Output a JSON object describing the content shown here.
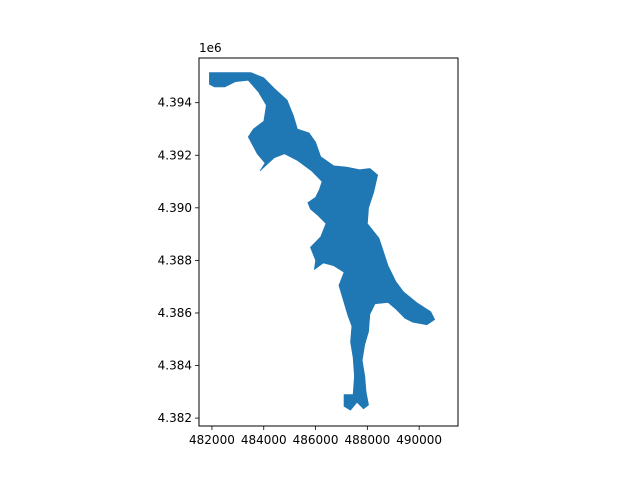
{
  "chart_data": {
    "type": "map",
    "title": "",
    "xlabel": "",
    "ylabel": "",
    "y_offset_label": "1e6",
    "xlim": [
      481500,
      491500
    ],
    "ylim": [
      4381700,
      4395700
    ],
    "x_ticks": [
      482000,
      484000,
      486000,
      488000,
      490000
    ],
    "x_tick_labels": [
      "482000",
      "484000",
      "486000",
      "488000",
      "490000"
    ],
    "y_ticks": [
      4382000,
      4384000,
      4386000,
      4388000,
      4390000,
      4392000,
      4394000
    ],
    "y_tick_labels": [
      "4.382",
      "4.384",
      "4.386",
      "4.388",
      "4.390",
      "4.392",
      "4.394"
    ],
    "grid": false,
    "fill_color": "#1f77b4",
    "polygon": [
      [
        481900,
        4395150
      ],
      [
        483500,
        4395150
      ],
      [
        484000,
        4394950
      ],
      [
        484400,
        4394550
      ],
      [
        484900,
        4394100
      ],
      [
        485150,
        4393500
      ],
      [
        485300,
        4393000
      ],
      [
        485750,
        4392850
      ],
      [
        486000,
        4392500
      ],
      [
        486200,
        4391950
      ],
      [
        486700,
        4391600
      ],
      [
        487200,
        4391550
      ],
      [
        487700,
        4391450
      ],
      [
        488100,
        4391500
      ],
      [
        488400,
        4391250
      ],
      [
        488250,
        4390600
      ],
      [
        488050,
        4390000
      ],
      [
        488000,
        4389400
      ],
      [
        488450,
        4388850
      ],
      [
        488600,
        4388400
      ],
      [
        488800,
        4387800
      ],
      [
        489100,
        4387200
      ],
      [
        489400,
        4386800
      ],
      [
        489900,
        4386400
      ],
      [
        490450,
        4386050
      ],
      [
        490600,
        4385750
      ],
      [
        490300,
        4385550
      ],
      [
        489750,
        4385650
      ],
      [
        489450,
        4385800
      ],
      [
        489100,
        4386150
      ],
      [
        488800,
        4386400
      ],
      [
        488300,
        4386350
      ],
      [
        488100,
        4385950
      ],
      [
        488050,
        4385300
      ],
      [
        487900,
        4384800
      ],
      [
        487800,
        4384200
      ],
      [
        487900,
        4383600
      ],
      [
        487950,
        4383000
      ],
      [
        488050,
        4382500
      ],
      [
        487850,
        4382350
      ],
      [
        487600,
        4382600
      ],
      [
        487350,
        4382300
      ],
      [
        487100,
        4382450
      ],
      [
        487100,
        4382900
      ],
      [
        487450,
        4382900
      ],
      [
        487500,
        4383600
      ],
      [
        487450,
        4384300
      ],
      [
        487350,
        4384900
      ],
      [
        487400,
        4385500
      ],
      [
        487250,
        4385900
      ],
      [
        487100,
        4386400
      ],
      [
        486900,
        4387050
      ],
      [
        487100,
        4387550
      ],
      [
        486700,
        4387800
      ],
      [
        486300,
        4387900
      ],
      [
        485950,
        4387650
      ],
      [
        486000,
        4388000
      ],
      [
        485800,
        4388500
      ],
      [
        486200,
        4388900
      ],
      [
        486400,
        4389400
      ],
      [
        486100,
        4389700
      ],
      [
        485800,
        4389950
      ],
      [
        485700,
        4390200
      ],
      [
        486000,
        4390400
      ],
      [
        486150,
        4390700
      ],
      [
        486250,
        4391000
      ],
      [
        485850,
        4391400
      ],
      [
        485300,
        4391800
      ],
      [
        484800,
        4392050
      ],
      [
        484400,
        4391900
      ],
      [
        483850,
        4391400
      ],
      [
        484050,
        4391700
      ],
      [
        483750,
        4392050
      ],
      [
        483400,
        4392700
      ],
      [
        483600,
        4393000
      ],
      [
        484000,
        4393300
      ],
      [
        484100,
        4393900
      ],
      [
        483800,
        4394400
      ],
      [
        483400,
        4394850
      ],
      [
        482900,
        4394800
      ],
      [
        482500,
        4394600
      ],
      [
        482100,
        4394600
      ],
      [
        481900,
        4394700
      ]
    ]
  }
}
